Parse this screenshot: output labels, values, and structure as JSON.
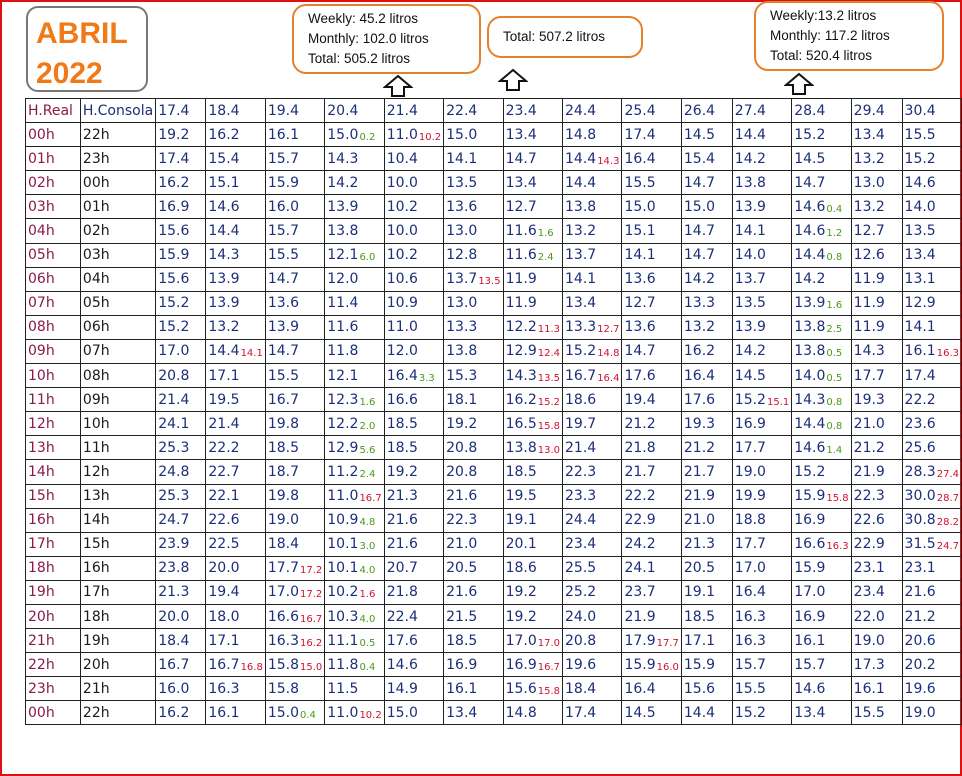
{
  "title": {
    "line1": "ABRIL",
    "line2": "2022"
  },
  "notes": [
    {
      "lines": [
        "Weekly: 45.2 litros",
        "Monthly: 102.0 litros",
        "Total: 505.2 litros"
      ]
    },
    {
      "lines": [
        "Total: 507.2 litros"
      ]
    },
    {
      "lines": [
        "Weekly:13.2 litros",
        "Monthly: 117.2 litros",
        "Total: 520.4 litros"
      ]
    }
  ],
  "colors": {
    "frame": "#e01010",
    "title": "#f07a18",
    "note_border": "#e6802a",
    "ink_blue": "#1c2e78",
    "ink_red": "#d01030",
    "ink_green": "#4a9a1a"
  },
  "table": {
    "headers": [
      "H.Real",
      "H.Consola",
      "17.4",
      "18.4",
      "19.4",
      "20.4",
      "21.4",
      "22.4",
      "23.4",
      "24.4",
      "25.4",
      "26.4",
      "27.4",
      "28.4",
      "29.4",
      "30.4"
    ],
    "rows": [
      {
        "real": "00h",
        "local": "22h",
        "cells": [
          "19.2",
          "16.2",
          "16.1",
          "15.0",
          "11.0",
          "15.0",
          "13.4",
          "14.8",
          "17.4",
          "14.5",
          "14.4",
          "15.2",
          "13.4",
          "15.5"
        ],
        "notes": {
          "3": {
            "t": "0.2",
            "c": "green"
          },
          "4": {
            "t": "10.2",
            "c": "red"
          }
        }
      },
      {
        "real": "01h",
        "local": "23h",
        "cells": [
          "17.4",
          "15.4",
          "15.7",
          "14.3",
          "10.4",
          "14.1",
          "14.7",
          "14.4",
          "16.4",
          "15.4",
          "14.2",
          "14.5",
          "13.2",
          "15.2"
        ],
        "notes": {
          "7": {
            "t": "14.3",
            "c": "red"
          }
        }
      },
      {
        "real": "02h",
        "local": "00h",
        "cells": [
          "16.2",
          "15.1",
          "15.9",
          "14.2",
          "10.0",
          "13.5",
          "13.4",
          "14.4",
          "15.5",
          "14.7",
          "13.8",
          "14.7",
          "13.0",
          "14.6"
        ],
        "notes": {}
      },
      {
        "real": "03h",
        "local": "01h",
        "cells": [
          "16.9",
          "14.6",
          "16.0",
          "13.9",
          "10.2",
          "13.6",
          "12.7",
          "13.8",
          "15.0",
          "15.0",
          "13.9",
          "14.6",
          "13.2",
          "14.0"
        ],
        "notes": {
          "11": {
            "t": "0.4",
            "c": "green"
          }
        }
      },
      {
        "real": "04h",
        "local": "02h",
        "cells": [
          "15.6",
          "14.4",
          "15.7",
          "13.8",
          "10.0",
          "13.0",
          "11.6",
          "13.2",
          "15.1",
          "14.7",
          "14.1",
          "14.6",
          "12.7",
          "13.5"
        ],
        "notes": {
          "6": {
            "t": "1.6",
            "c": "green"
          },
          "11": {
            "t": "1.2",
            "c": "green"
          }
        }
      },
      {
        "real": "05h",
        "local": "03h",
        "cells": [
          "15.9",
          "14.3",
          "15.5",
          "12.1",
          "10.2",
          "12.8",
          "11.6",
          "13.7",
          "14.1",
          "14.7",
          "14.0",
          "14.4",
          "12.6",
          "13.4"
        ],
        "notes": {
          "3": {
            "t": "6.0",
            "c": "green"
          },
          "6": {
            "t": "2.4",
            "c": "green"
          },
          "11": {
            "t": "0.8",
            "c": "green"
          }
        }
      },
      {
        "real": "06h",
        "local": "04h",
        "cells": [
          "15.6",
          "13.9",
          "14.7",
          "12.0",
          "10.6",
          "13.7",
          "11.9",
          "14.1",
          "13.6",
          "14.2",
          "13.7",
          "14.2",
          "11.9",
          "13.1"
        ],
        "notes": {
          "5": {
            "t": "13.5",
            "c": "red"
          }
        }
      },
      {
        "real": "07h",
        "local": "05h",
        "cells": [
          "15.2",
          "13.9",
          "13.6",
          "11.4",
          "10.9",
          "13.0",
          "11.9",
          "13.4",
          "12.7",
          "13.3",
          "13.5",
          "13.9",
          "11.9",
          "12.9"
        ],
        "notes": {
          "11": {
            "t": "1.6",
            "c": "green"
          }
        }
      },
      {
        "real": "08h",
        "local": "06h",
        "cells": [
          "15.2",
          "13.2",
          "13.9",
          "11.6",
          "11.0",
          "13.3",
          "12.2",
          "13.3",
          "13.6",
          "13.2",
          "13.9",
          "13.8",
          "11.9",
          "14.1"
        ],
        "notes": {
          "6": {
            "t": "11.3",
            "c": "red"
          },
          "7": {
            "t": "12.7",
            "c": "red"
          },
          "11": {
            "t": "2.5",
            "c": "green"
          }
        }
      },
      {
        "real": "09h",
        "local": "07h",
        "cells": [
          "17.0",
          "14.4",
          "14.7",
          "11.8",
          "12.0",
          "13.8",
          "12.9",
          "15.2",
          "14.7",
          "16.2",
          "14.2",
          "13.8",
          "14.3",
          "16.1"
        ],
        "notes": {
          "1": {
            "t": "14.1",
            "c": "red"
          },
          "6": {
            "t": "12.4",
            "c": "red"
          },
          "7": {
            "t": "14.8",
            "c": "red"
          },
          "11": {
            "t": "0.5",
            "c": "green"
          },
          "13": {
            "t": "16.3",
            "c": "red"
          }
        }
      },
      {
        "real": "10h",
        "local": "08h",
        "cells": [
          "20.8",
          "17.1",
          "15.5",
          "12.1",
          "16.4",
          "15.3",
          "14.3",
          "16.7",
          "17.6",
          "16.4",
          "14.5",
          "14.0",
          "17.7",
          "17.4"
        ],
        "notes": {
          "4": {
            "t": "3.3",
            "c": "green"
          },
          "6": {
            "t": "13.5",
            "c": "red"
          },
          "7": {
            "t": "16.4",
            "c": "red"
          },
          "11": {
            "t": "0.5",
            "c": "green"
          }
        }
      },
      {
        "real": "11h",
        "local": "09h",
        "cells": [
          "21.4",
          "19.5",
          "16.7",
          "12.3",
          "16.6",
          "18.1",
          "16.2",
          "18.6",
          "19.4",
          "17.6",
          "15.2",
          "14.3",
          "19.3",
          "22.2"
        ],
        "notes": {
          "3": {
            "t": "1.6",
            "c": "green"
          },
          "6": {
            "t": "15.2",
            "c": "red"
          },
          "10": {
            "t": "15.1",
            "c": "red"
          },
          "11": {
            "t": "0.8",
            "c": "green"
          }
        }
      },
      {
        "real": "12h",
        "local": "10h",
        "cells": [
          "24.1",
          "21.4",
          "19.8",
          "12.2",
          "18.5",
          "19.2",
          "16.5",
          "19.7",
          "21.2",
          "19.3",
          "16.9",
          "14.4",
          "21.0",
          "23.6"
        ],
        "notes": {
          "3": {
            "t": "2.0",
            "c": "green"
          },
          "6": {
            "t": "15.8",
            "c": "red"
          },
          "11": {
            "t": "0.8",
            "c": "green"
          }
        }
      },
      {
        "real": "13h",
        "local": "11h",
        "cells": [
          "25.3",
          "22.2",
          "18.5",
          "12.9",
          "18.5",
          "20.8",
          "13.8",
          "21.4",
          "21.8",
          "21.2",
          "17.7",
          "14.6",
          "21.2",
          "25.6"
        ],
        "notes": {
          "3": {
            "t": "5.6",
            "c": "green"
          },
          "6": {
            "t": "13.0",
            "c": "red"
          },
          "11": {
            "t": "1.4",
            "c": "green"
          }
        }
      },
      {
        "real": "14h",
        "local": "12h",
        "cells": [
          "24.8",
          "22.7",
          "18.7",
          "11.2",
          "19.2",
          "20.8",
          "18.5",
          "22.3",
          "21.7",
          "21.7",
          "19.0",
          "15.2",
          "21.9",
          "28.3"
        ],
        "notes": {
          "3": {
            "t": "2.4",
            "c": "green"
          },
          "13": {
            "t": "27.4",
            "c": "red"
          }
        }
      },
      {
        "real": "15h",
        "local": "13h",
        "cells": [
          "25.3",
          "22.1",
          "19.8",
          "11.0",
          "21.3",
          "21.6",
          "19.5",
          "23.3",
          "22.2",
          "21.9",
          "19.9",
          "15.9",
          "22.3",
          "30.0"
        ],
        "notes": {
          "3": {
            "t": "16.7",
            "c": "red"
          },
          "11": {
            "t": "15.8",
            "c": "red"
          },
          "13": {
            "t": "28.7",
            "c": "red"
          }
        }
      },
      {
        "real": "16h",
        "local": "14h",
        "cells": [
          "24.7",
          "22.6",
          "19.0",
          "10.9",
          "21.6",
          "22.3",
          "19.1",
          "24.4",
          "22.9",
          "21.0",
          "18.8",
          "16.9",
          "22.6",
          "30.8"
        ],
        "notes": {
          "3": {
            "t": "4.8",
            "c": "green"
          },
          "13": {
            "t": "28.2",
            "c": "red"
          }
        }
      },
      {
        "real": "17h",
        "local": "15h",
        "cells": [
          "23.9",
          "22.5",
          "18.4",
          "10.1",
          "21.6",
          "21.0",
          "20.1",
          "23.4",
          "24.2",
          "21.3",
          "17.7",
          "16.6",
          "22.9",
          "31.5"
        ],
        "notes": {
          "3": {
            "t": "3.0",
            "c": "green"
          },
          "11": {
            "t": "16.3",
            "c": "red"
          },
          "13": {
            "t": "24.7",
            "c": "red"
          }
        }
      },
      {
        "real": "18h",
        "local": "16h",
        "cells": [
          "23.8",
          "20.0",
          "17.7",
          "10.1",
          "20.7",
          "20.5",
          "18.6",
          "25.5",
          "24.1",
          "20.5",
          "17.0",
          "15.9",
          "23.1",
          "23.1"
        ],
        "notes": {
          "2": {
            "t": "17.2",
            "c": "red"
          },
          "3": {
            "t": "4.0",
            "c": "green"
          }
        }
      },
      {
        "real": "19h",
        "local": "17h",
        "cells": [
          "21.3",
          "19.4",
          "17.0",
          "10.2",
          "21.8",
          "21.6",
          "19.2",
          "25.2",
          "23.7",
          "19.1",
          "16.4",
          "17.0",
          "23.4",
          "21.6"
        ],
        "notes": {
          "2": {
            "t": "17.2",
            "c": "red"
          },
          "3": {
            "t": "1.6",
            "c": "red"
          }
        }
      },
      {
        "real": "20h",
        "local": "18h",
        "cells": [
          "20.0",
          "18.0",
          "16.6",
          "10.3",
          "22.4",
          "21.5",
          "19.2",
          "24.0",
          "21.9",
          "18.5",
          "16.3",
          "16.9",
          "22.0",
          "21.2"
        ],
        "notes": {
          "2": {
            "t": "16.7",
            "c": "red"
          },
          "3": {
            "t": "4.0",
            "c": "green"
          }
        }
      },
      {
        "real": "21h",
        "local": "19h",
        "cells": [
          "18.4",
          "17.1",
          "16.3",
          "11.1",
          "17.6",
          "18.5",
          "17.0",
          "20.8",
          "17.9",
          "17.1",
          "16.3",
          "16.1",
          "19.0",
          "20.6"
        ],
        "notes": {
          "2": {
            "t": "16.2",
            "c": "red"
          },
          "3": {
            "t": "0.5",
            "c": "green"
          },
          "6": {
            "t": "17.0",
            "c": "red"
          },
          "8": {
            "t": "17.7",
            "c": "red"
          }
        }
      },
      {
        "real": "22h",
        "local": "20h",
        "cells": [
          "16.7",
          "16.7",
          "15.8",
          "11.8",
          "14.6",
          "16.9",
          "16.9",
          "19.6",
          "15.9",
          "15.9",
          "15.7",
          "15.7",
          "17.3",
          "20.2"
        ],
        "notes": {
          "1": {
            "t": "16.8",
            "c": "red"
          },
          "2": {
            "t": "15.0",
            "c": "red"
          },
          "3": {
            "t": "0.4",
            "c": "green"
          },
          "6": {
            "t": "16.7",
            "c": "red"
          },
          "8": {
            "t": "16.0",
            "c": "red"
          }
        }
      },
      {
        "real": "23h",
        "local": "21h",
        "cells": [
          "16.0",
          "16.3",
          "15.8",
          "11.5",
          "14.9",
          "16.1",
          "15.6",
          "18.4",
          "16.4",
          "15.6",
          "15.5",
          "14.6",
          "16.1",
          "19.6"
        ],
        "notes": {
          "6": {
            "t": "15.8",
            "c": "red"
          }
        }
      },
      {
        "real": "00h",
        "local": "22h",
        "cells": [
          "16.2",
          "16.1",
          "15.0",
          "11.0",
          "15.0",
          "13.4",
          "14.8",
          "17.4",
          "14.5",
          "14.4",
          "15.2",
          "13.4",
          "15.5",
          "19.0"
        ],
        "notes": {
          "2": {
            "t": "0.4",
            "c": "green"
          },
          "3": {
            "t": "10.2",
            "c": "red"
          }
        }
      }
    ]
  }
}
